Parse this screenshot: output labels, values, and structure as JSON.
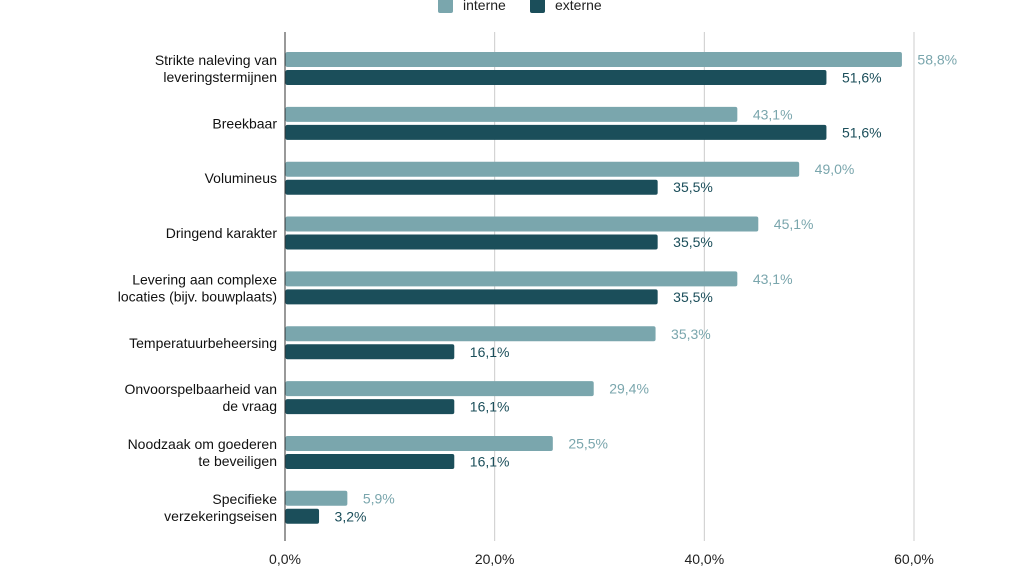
{
  "chart_data": {
    "type": "bar",
    "orientation": "horizontal",
    "title": "",
    "xlabel": "",
    "ylabel": "",
    "xlim": [
      0,
      60
    ],
    "x_ticks": [
      "0,0%",
      "20,0%",
      "40,0%",
      "60,0%"
    ],
    "x_tick_values": [
      0,
      20,
      40,
      60
    ],
    "grid": "vertical",
    "legend_position": "top",
    "categories": [
      [
        "Strikte naleving van",
        "leveringstermijnen"
      ],
      [
        "Breekbaar"
      ],
      [
        "Volumineus"
      ],
      [
        "Dringend karakter"
      ],
      [
        "Levering aan complexe",
        "locaties (bijv. bouwplaats)"
      ],
      [
        "Temperatuurbeheersing"
      ],
      [
        "Onvoorspelbaarheid van",
        "de vraag"
      ],
      [
        "Noodzaak om goederen",
        "te beveiligen"
      ],
      [
        "Specifieke",
        "verzekeringseisen"
      ]
    ],
    "series": [
      {
        "name": "interne",
        "color": "#7aa6ad",
        "label_color": "#7aa6ad",
        "values": [
          58.8,
          43.1,
          49.0,
          45.1,
          43.1,
          35.3,
          29.4,
          25.5,
          5.9
        ],
        "labels": [
          "58,8%",
          "43,1%",
          "49,0%",
          "45,1%",
          "43,1%",
          "35,3%",
          "29,4%",
          "25,5%",
          "5,9%"
        ]
      },
      {
        "name": "externe",
        "color": "#1b4e5a",
        "label_color": "#1b4e5a",
        "values": [
          51.6,
          51.6,
          35.5,
          35.5,
          35.5,
          16.1,
          16.1,
          16.1,
          3.2
        ],
        "labels": [
          "51,6%",
          "51,6%",
          "35,5%",
          "35,5%",
          "35,5%",
          "16,1%",
          "16,1%",
          "16,1%",
          "3,2%"
        ]
      }
    ]
  }
}
